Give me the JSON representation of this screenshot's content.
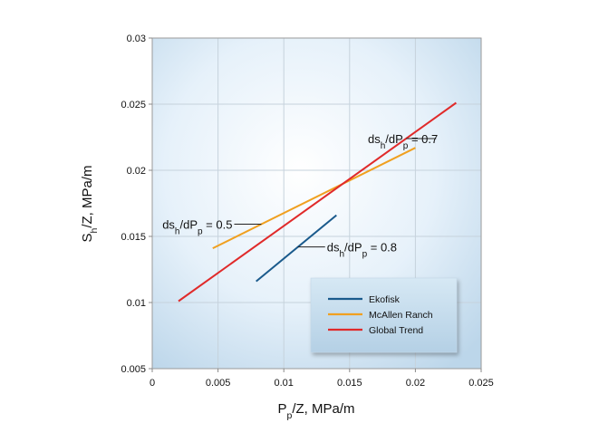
{
  "chart_data": {
    "type": "line",
    "xlim": [
      0,
      0.025
    ],
    "ylim": [
      0.005,
      0.03
    ],
    "xticks": [
      "0",
      "0.005",
      "0.01",
      "0.015",
      "0.02",
      "0.025"
    ],
    "yticks": [
      "0.005",
      "0.01",
      "0.015",
      "0.02",
      "0.025",
      "0.03"
    ],
    "xlabel": {
      "main": "P",
      "sub": "p",
      "tail": "/Z, MPa/m"
    },
    "ylabel": {
      "main": "S",
      "sub": "h",
      "tail": "/Z, MPa/m"
    },
    "grid": true,
    "series": [
      {
        "name": "Ekofisk",
        "color": "#1a5a8c",
        "x": [
          0.0079,
          0.014
        ],
        "y": [
          0.0116,
          0.0166
        ]
      },
      {
        "name": "McAllen Ranch",
        "color": "#f0a020",
        "x": [
          0.0046,
          0.02
        ],
        "y": [
          0.0141,
          0.0217
        ]
      },
      {
        "name": "Global Trend",
        "color": "#e02a2a",
        "x": [
          0.002,
          0.0231
        ],
        "y": [
          0.0101,
          0.0251
        ]
      }
    ],
    "annotations": [
      {
        "series": "Global Trend",
        "prefix": "ds",
        "s1": "h",
        "mid": "/dP",
        "s2": "p",
        "suffix": " = 0.7",
        "anchor": "end"
      },
      {
        "series": "McAllen Ranch",
        "prefix": "ds",
        "s1": "h",
        "mid": "/dP",
        "s2": "p",
        "suffix": " = 0.5",
        "anchor": "end"
      },
      {
        "series": "Ekofisk",
        "prefix": "ds",
        "s1": "h",
        "mid": "/dP",
        "s2": "p",
        "suffix": " = 0.8",
        "anchor": "start"
      }
    ],
    "legend": {
      "position": "bottom-right",
      "entries": [
        "Ekofisk",
        "McAllen Ranch",
        "Global Trend"
      ]
    }
  }
}
